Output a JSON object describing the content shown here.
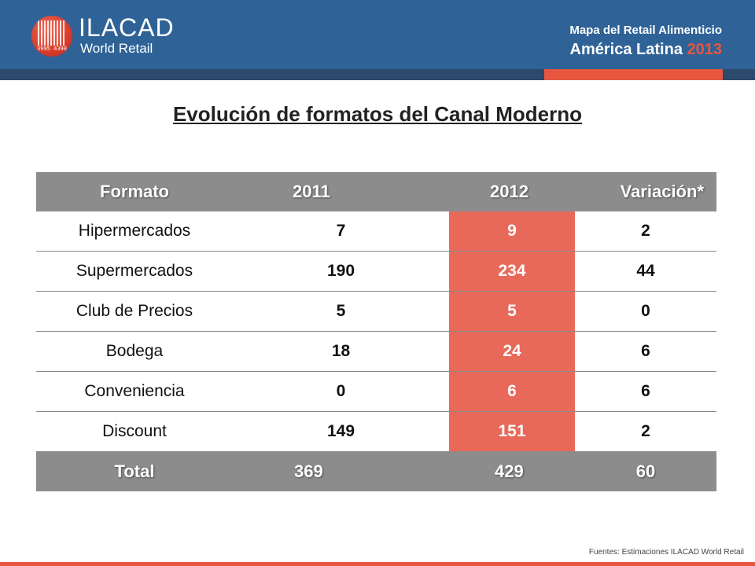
{
  "header": {
    "logo_name": "ILACAD",
    "logo_sub": "World Retail",
    "logo_code": "3995 4390",
    "title": "Mapa del Retail Alimenticio",
    "subtitle_main": "América Latina",
    "subtitle_year": "2013"
  },
  "colors": {
    "header_blue": "#2f6397",
    "accent_red": "#e8563f",
    "highlight_cell": "#e8695a",
    "table_header_gray": "#8c8c8c"
  },
  "page_title": "Evolución de formatos del Canal Moderno",
  "table": {
    "columns": [
      "Formato",
      "2011",
      "2012",
      "Variación*"
    ],
    "rows": [
      [
        "Hipermercados",
        "7",
        "9",
        "2"
      ],
      [
        "Supermercados",
        "190",
        "234",
        "44"
      ],
      [
        "Club de Precios",
        "5",
        "5",
        "0"
      ],
      [
        "Bodega",
        "18",
        "24",
        "6"
      ],
      [
        "Conveniencia",
        "0",
        "6",
        "6"
      ],
      [
        "Discount",
        "149",
        "151",
        "2"
      ]
    ],
    "total": [
      "Total",
      "369",
      "429",
      "60"
    ]
  },
  "source": "Fuentes: Estimaciones ILACAD World Retail"
}
